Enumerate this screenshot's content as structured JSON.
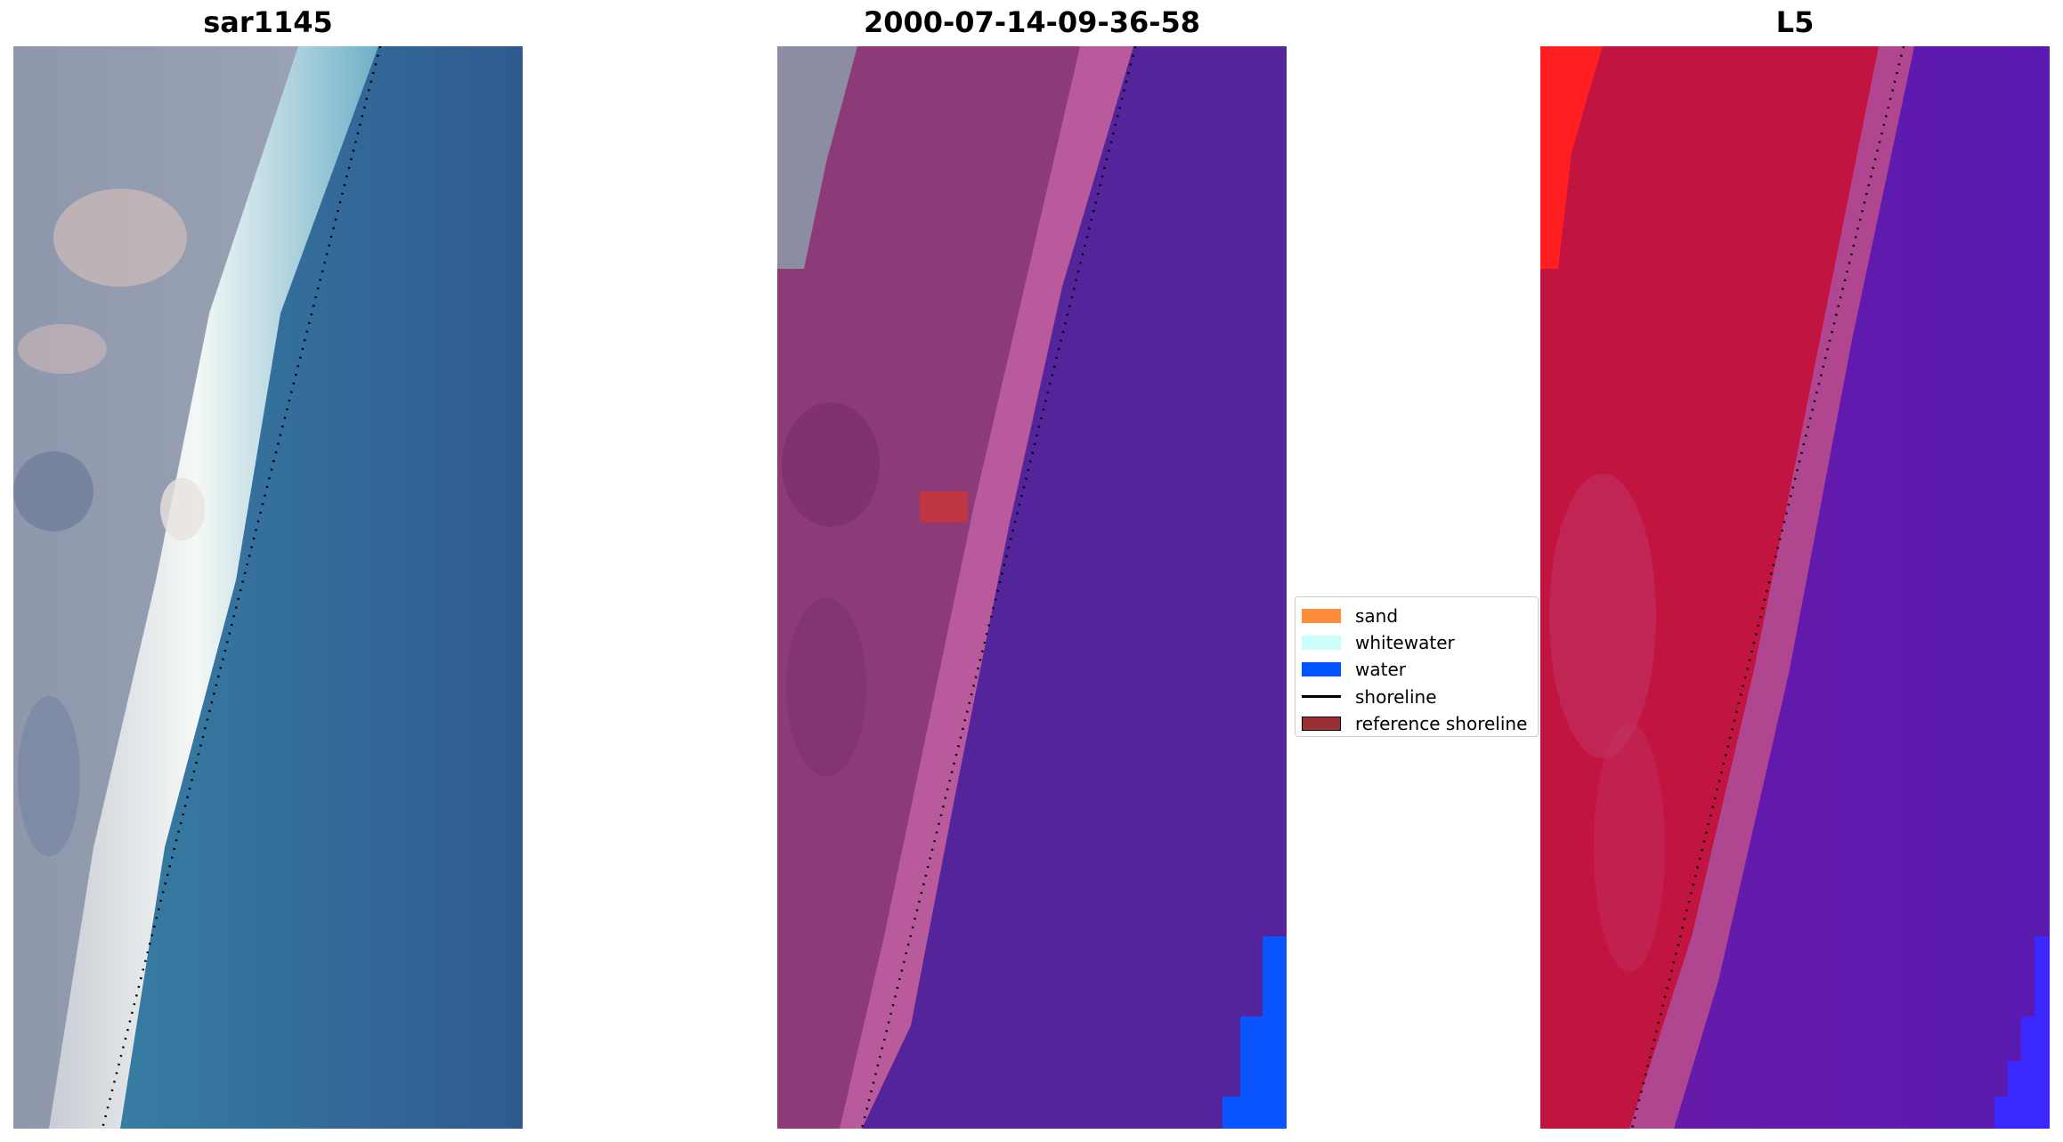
{
  "panels": [
    {
      "title": "sar1145",
      "image": "rgb-satellite-image"
    },
    {
      "title": "2000-07-14-09-36-58",
      "image": "classified-image"
    },
    {
      "title": "L5",
      "image": "mndwi-image"
    }
  ],
  "legend": {
    "items": [
      {
        "label": "sand",
        "kind": "patch",
        "color": "#ff8c3a"
      },
      {
        "label": "whitewater",
        "kind": "patch",
        "color": "#ccfcfc"
      },
      {
        "label": "water",
        "kind": "patch",
        "color": "#0055ff"
      },
      {
        "label": "shoreline",
        "kind": "line",
        "color": "#000000"
      },
      {
        "label": "reference shoreline",
        "kind": "patch",
        "color": "#9a3034"
      }
    ]
  }
}
